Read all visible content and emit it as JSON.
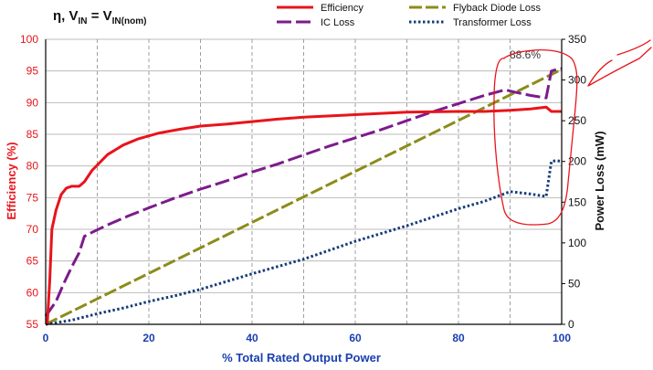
{
  "chart_data": {
    "type": "line",
    "title": {
      "eta": "η",
      "sep": ", ",
      "v1": "V",
      "sub1": "IN",
      "eq": " = ",
      "v2": "V",
      "sub2": "IN(nom)"
    },
    "xlabel": "% Total Rated Output Power",
    "ylabel_left": "Efficiency  (%)",
    "ylabel_right": "Power Loss (mW)",
    "xlim": [
      0,
      100
    ],
    "ylim_left": [
      55,
      100
    ],
    "ylim_right": [
      0,
      350
    ],
    "xticks": [
      0,
      20,
      40,
      60,
      80,
      100
    ],
    "yticks_left": [
      55,
      60,
      65,
      70,
      75,
      80,
      85,
      90,
      95,
      100
    ],
    "yticks_right": [
      0,
      50,
      100,
      150,
      200,
      250,
      300,
      350
    ],
    "grid": true,
    "legend_position": "top",
    "annotation": "88.6%",
    "colors": {
      "efficiency": "#e8141b",
      "ic_loss": "#7d1a8c",
      "flyback": "#8c8c1a",
      "transformer": "#173c7a",
      "grid": "#bbbbbb",
      "vgrid": "#888888",
      "markup": "#e8141b"
    },
    "series": [
      {
        "name": "Efficiency",
        "axis": "left",
        "style": "solid",
        "points": [
          [
            0.3,
            55
          ],
          [
            0.8,
            62
          ],
          [
            1.2,
            70
          ],
          [
            2,
            73
          ],
          [
            3,
            75.5
          ],
          [
            4,
            76.5
          ],
          [
            5,
            76.8
          ],
          [
            6.5,
            76.8
          ],
          [
            7.5,
            77.5
          ],
          [
            9,
            79.3
          ],
          [
            12,
            81.8
          ],
          [
            15,
            83.3
          ],
          [
            18,
            84.3
          ],
          [
            22,
            85.2
          ],
          [
            26,
            85.8
          ],
          [
            30,
            86.3
          ],
          [
            35,
            86.6
          ],
          [
            40,
            87
          ],
          [
            45,
            87.4
          ],
          [
            50,
            87.7
          ],
          [
            55,
            87.9
          ],
          [
            60,
            88.1
          ],
          [
            65,
            88.3
          ],
          [
            70,
            88.5
          ],
          [
            80,
            88.6
          ],
          [
            85,
            88.6
          ],
          [
            90,
            88.8
          ],
          [
            94,
            89
          ],
          [
            97,
            89.3
          ],
          [
            98,
            88.6
          ],
          [
            100,
            88.6
          ]
        ]
      },
      {
        "name": "IC Loss",
        "axis": "right",
        "style": "dash",
        "points": [
          [
            0,
            10
          ],
          [
            2,
            28
          ],
          [
            3.5,
            50
          ],
          [
            5,
            70
          ],
          [
            6.5,
            88
          ],
          [
            7.5,
            108
          ],
          [
            9,
            113
          ],
          [
            12,
            122
          ],
          [
            16,
            133
          ],
          [
            20,
            143
          ],
          [
            25,
            155
          ],
          [
            30,
            166
          ],
          [
            35,
            176
          ],
          [
            40,
            187
          ],
          [
            45,
            197
          ],
          [
            50,
            208
          ],
          [
            55,
            219
          ],
          [
            60,
            229
          ],
          [
            65,
            239
          ],
          [
            70,
            250
          ],
          [
            75,
            261
          ],
          [
            80,
            271
          ],
          [
            85,
            281
          ],
          [
            89,
            288
          ],
          [
            91,
            285
          ],
          [
            94,
            281
          ],
          [
            97,
            278
          ],
          [
            98,
            311
          ],
          [
            99,
            313
          ],
          [
            100,
            314
          ]
        ]
      },
      {
        "name": "Flyback Diode Loss",
        "axis": "right",
        "style": "long-dash",
        "points": [
          [
            0,
            0
          ],
          [
            100,
            313
          ]
        ]
      },
      {
        "name": "Transformer Loss",
        "axis": "right",
        "style": "dot",
        "points": [
          [
            0,
            0
          ],
          [
            5,
            5
          ],
          [
            10,
            13
          ],
          [
            15,
            20
          ],
          [
            20,
            28
          ],
          [
            25,
            35
          ],
          [
            30,
            43
          ],
          [
            40,
            62
          ],
          [
            50,
            80
          ],
          [
            60,
            102
          ],
          [
            70,
            121
          ],
          [
            80,
            142
          ],
          [
            85,
            151
          ],
          [
            90,
            163
          ],
          [
            94,
            160
          ],
          [
            97,
            157
          ],
          [
            98,
            200
          ],
          [
            99,
            201
          ],
          [
            100,
            200
          ]
        ]
      }
    ]
  }
}
